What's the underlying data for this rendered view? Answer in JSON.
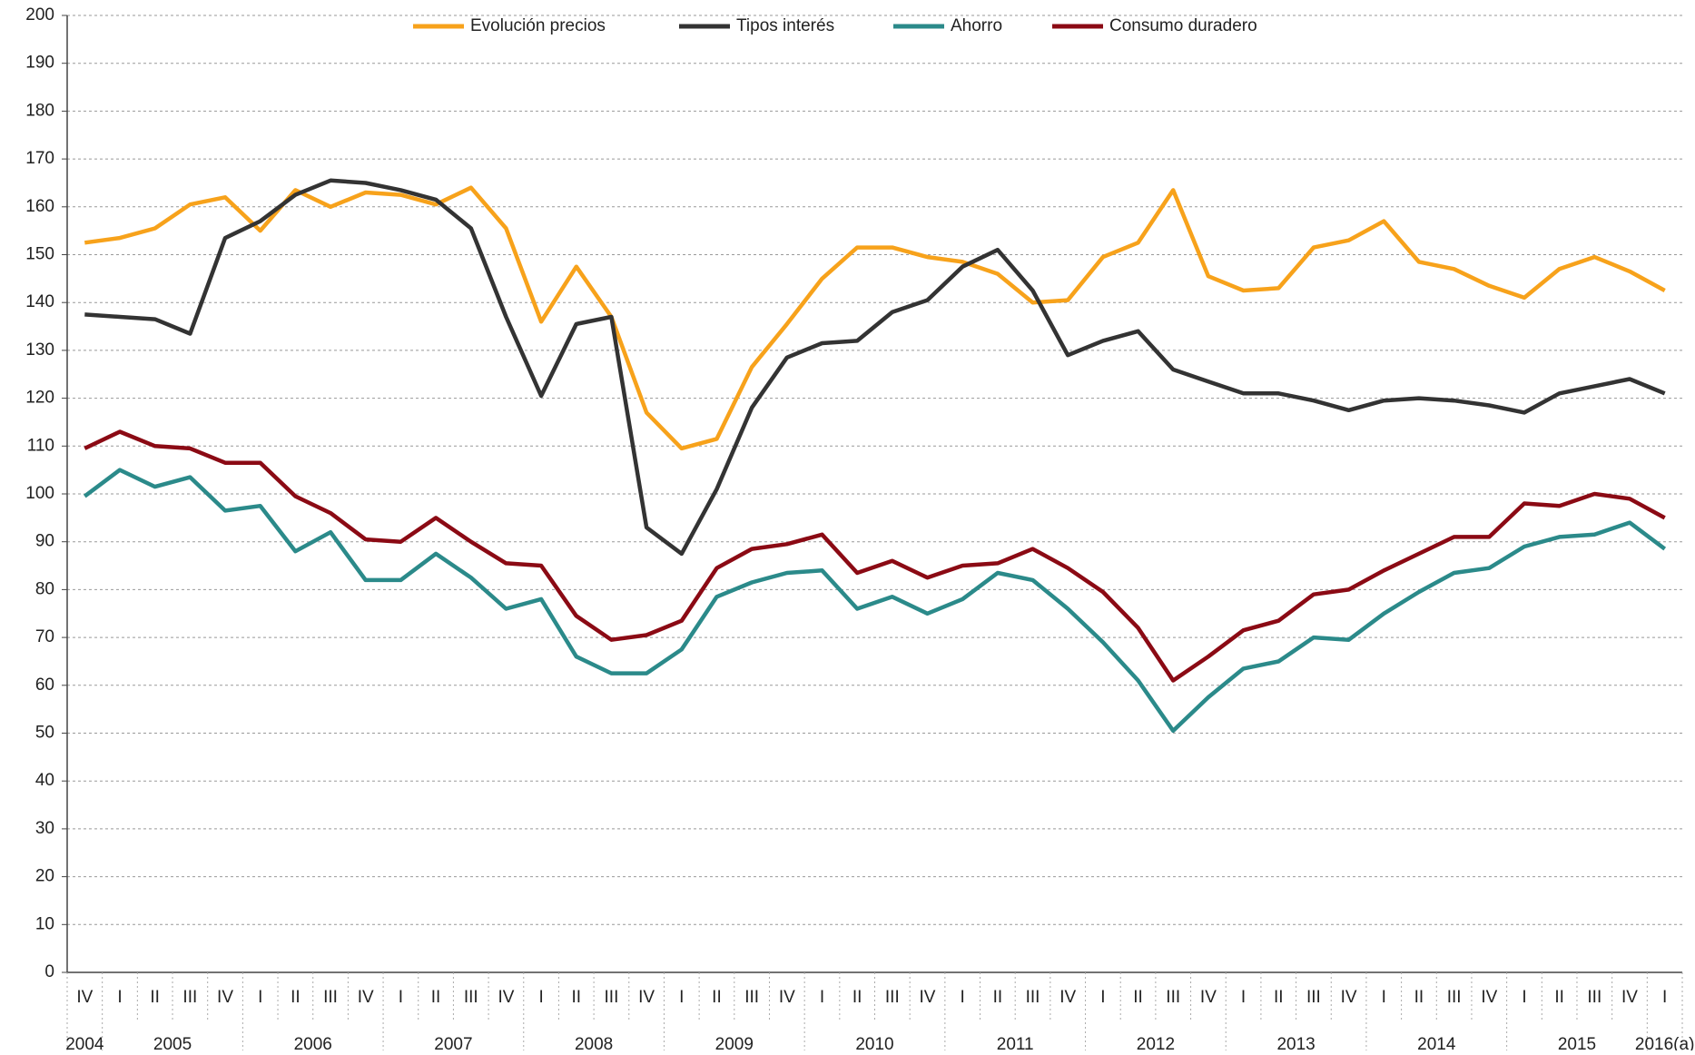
{
  "chart_data": {
    "type": "line",
    "year_groups": [
      {
        "label": "2004",
        "quarters": [
          "IV"
        ]
      },
      {
        "label": "2005",
        "quarters": [
          "I",
          "II",
          "III",
          "IV"
        ]
      },
      {
        "label": "2006",
        "quarters": [
          "I",
          "II",
          "III",
          "IV"
        ]
      },
      {
        "label": "2007",
        "quarters": [
          "I",
          "II",
          "III",
          "IV"
        ]
      },
      {
        "label": "2008",
        "quarters": [
          "I",
          "II",
          "III",
          "IV"
        ]
      },
      {
        "label": "2009",
        "quarters": [
          "I",
          "II",
          "III",
          "IV"
        ]
      },
      {
        "label": "2010",
        "quarters": [
          "I",
          "II",
          "III",
          "IV"
        ]
      },
      {
        "label": "2011",
        "quarters": [
          "I",
          "II",
          "III",
          "IV"
        ]
      },
      {
        "label": "2012",
        "quarters": [
          "I",
          "II",
          "III",
          "IV"
        ]
      },
      {
        "label": "2013",
        "quarters": [
          "I",
          "II",
          "III",
          "IV"
        ]
      },
      {
        "label": "2014",
        "quarters": [
          "I",
          "II",
          "III",
          "IV"
        ]
      },
      {
        "label": "2015",
        "quarters": [
          "I",
          "II",
          "III",
          "IV"
        ]
      },
      {
        "label": "2016(a)",
        "quarters": [
          "I"
        ]
      }
    ],
    "series": [
      {
        "name": "Evolución precios",
        "color": "#f7a21b",
        "values": [
          152.5,
          153.5,
          155.5,
          160.5,
          162,
          155,
          163.5,
          160,
          163,
          162.5,
          160.5,
          164,
          155.5,
          136,
          147.5,
          137,
          117,
          109.5,
          111.5,
          126.5,
          135.5,
          145,
          151.5,
          151.5,
          149.5,
          148.5,
          146,
          140,
          140.5,
          149.5,
          152.5,
          163.5,
          145.5,
          142.5,
          143,
          151.5,
          153,
          157,
          148.5,
          147,
          143.5,
          141,
          147,
          149.5,
          146.5,
          142.5
        ]
      },
      {
        "name": "Tipos interés",
        "color": "#333333",
        "values": [
          137.5,
          137,
          136.5,
          133.5,
          153.5,
          157,
          162.5,
          165.5,
          165,
          163.5,
          161.5,
          155.5,
          137,
          120.5,
          135.5,
          137,
          93,
          87.5,
          101,
          118,
          128.5,
          131.5,
          132,
          138,
          140.5,
          147.5,
          151,
          142.5,
          129,
          132,
          134,
          126,
          123.5,
          121,
          121,
          119.5,
          117.5,
          119.5,
          120,
          119.5,
          118.5,
          117,
          121,
          122.5,
          124,
          121
        ]
      },
      {
        "name": "Ahorro",
        "color": "#2b8a8a",
        "values": [
          99.5,
          105,
          101.5,
          103.5,
          96.5,
          97.5,
          88,
          92,
          82,
          82,
          87.5,
          82.5,
          76,
          78,
          66,
          62.5,
          62.5,
          67.5,
          78.5,
          81.5,
          83.5,
          84,
          76,
          78.5,
          75,
          78,
          83.5,
          82,
          76,
          69,
          61,
          50.5,
          57.5,
          63.5,
          65,
          70,
          69.5,
          75,
          79.5,
          83.5,
          84.5,
          89,
          91,
          91.5,
          94,
          88.5
        ]
      },
      {
        "name": "Consumo duradero",
        "color": "#8b0a14",
        "values": [
          109.5,
          113,
          110,
          109.5,
          106.5,
          106.5,
          99.5,
          96,
          90.5,
          90,
          95,
          90,
          85.5,
          85,
          74.5,
          69.5,
          70.5,
          73.5,
          84.5,
          88.5,
          89.5,
          91.5,
          83.5,
          86,
          82.5,
          85,
          85.5,
          88.5,
          84.5,
          79.5,
          72,
          61,
          66,
          71.5,
          73.5,
          79,
          80,
          84,
          87.5,
          91,
          91,
          98,
          97.5,
          100,
          99,
          95
        ]
      }
    ],
    "ylim": [
      0,
      200
    ],
    "yticks": [
      0,
      10,
      20,
      30,
      40,
      50,
      60,
      70,
      80,
      90,
      100,
      110,
      120,
      130,
      140,
      150,
      160,
      170,
      180,
      190,
      200
    ],
    "grid": true,
    "legend": "top"
  }
}
